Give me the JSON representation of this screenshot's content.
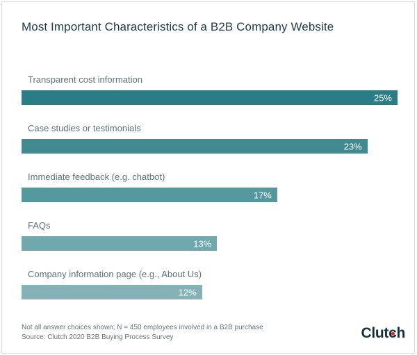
{
  "chart_data": {
    "type": "bar",
    "orientation": "horizontal",
    "title": "Most Important Characteristics of a B2B Company Website",
    "categories": [
      "Transparent cost information",
      "Case studies or testimonials",
      "Immediate feedback (e.g. chatbot)",
      "FAQs",
      "Company information page (e.g., About Us)"
    ],
    "values": [
      25,
      23,
      17,
      13,
      12
    ],
    "value_labels": [
      "25%",
      "23%",
      "17%",
      "13%",
      "12%"
    ],
    "bar_colors": [
      "#2a7d84",
      "#418a90",
      "#54979d",
      "#6fa8ad",
      "#85b2b7"
    ],
    "value_label_position": "inside-right",
    "xlim": [
      0,
      25
    ],
    "grid": false,
    "legend": false
  },
  "footer": {
    "note": "Not all answer choices shown; N = 450 employees involved in a B2B purchase",
    "source": "Source: Clutch 2020 B2B Buying Process Survey",
    "logo": {
      "part1": "Clut",
      "part2": "c",
      "part3": "h",
      "dot_color": "#e0261c",
      "text_color": "#16313e"
    }
  },
  "colors": {
    "title_text": "#1d3a49",
    "category_text": "#5d7278",
    "footnote_text": "#68737a",
    "border": "#d9dddd",
    "background": "#ffffff"
  }
}
